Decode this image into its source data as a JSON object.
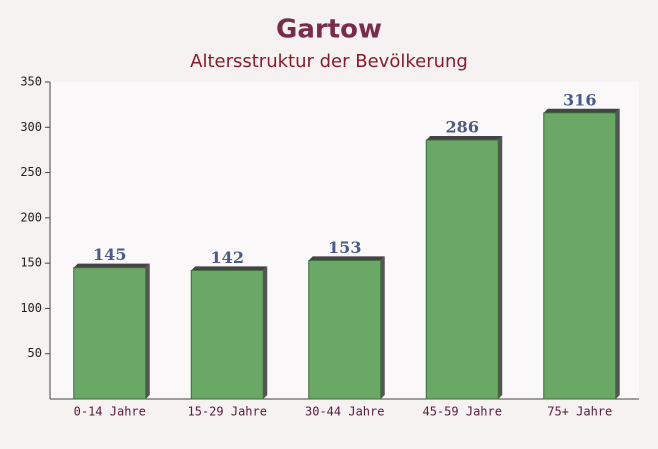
{
  "chart_data": {
    "type": "bar",
    "title": "Gartow",
    "subtitle": "Altersstruktur der Bevölkerung",
    "categories": [
      "0-14 Jahre",
      "15-29 Jahre",
      "30-44 Jahre",
      "45-59 Jahre",
      "75+ Jahre"
    ],
    "values": [
      145,
      142,
      153,
      286,
      316
    ],
    "color": "#6aa866",
    "ylim": [
      0,
      350
    ],
    "yticks": [
      50,
      100,
      150,
      200,
      250,
      300,
      350
    ]
  }
}
